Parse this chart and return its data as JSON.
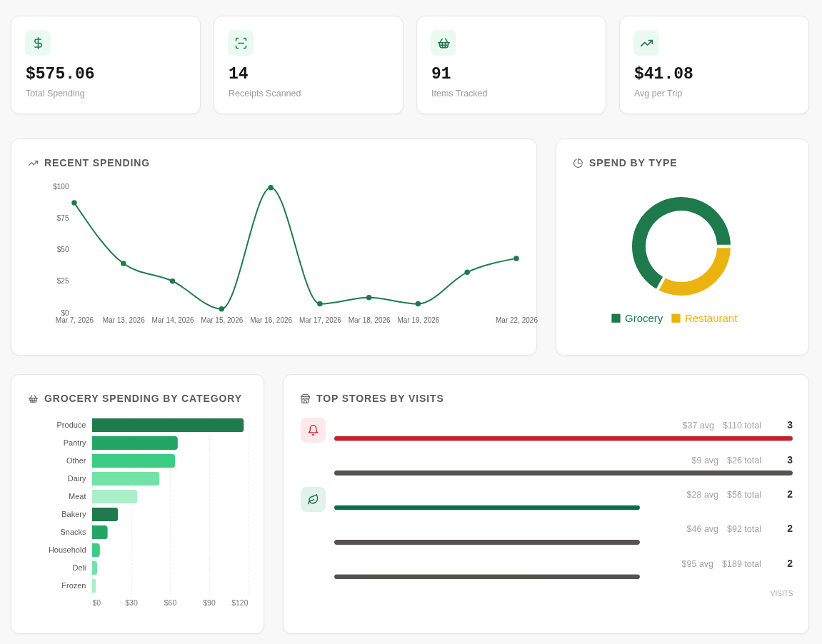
{
  "chart_data": [
    {
      "type": "other",
      "title": "$575.06",
      "subtitle": "Total Spending"
    },
    {
      "type": "other",
      "title": "14",
      "subtitle": "Receipts Scanned"
    },
    {
      "type": "other",
      "title": "91",
      "subtitle": "Items Tracked"
    },
    {
      "type": "other",
      "title": "$41.08",
      "subtitle": "Avg per Trip"
    },
    {
      "type": "line",
      "title": "RECENT SPENDING",
      "categories": [
        "Mar 7, 2026",
        "Mar 13, 2026",
        "Mar 14, 2026",
        "Mar 15, 2026",
        "Mar 16, 2026",
        "Mar 17, 2026",
        "Mar 18, 2026",
        "Mar 19, 2026",
        null,
        "Mar 22, 2026"
      ],
      "series": [
        {
          "color": "#1e7b4b",
          "values": [
            87,
            39,
            25,
            3,
            99,
            7,
            12,
            7,
            32,
            43
          ]
        }
      ],
      "ylim": [
        0,
        100
      ],
      "yticks": [
        {
          "value": 0,
          "label": "$0"
        },
        {
          "value": 25,
          "label": "$25"
        },
        {
          "value": 50,
          "label": "$50"
        },
        {
          "value": 75,
          "label": "$75"
        },
        {
          "value": 100,
          "label": "$100"
        }
      ],
      "marker": "circle"
    },
    {
      "type": "donut",
      "title": "SPEND BY TYPE",
      "categories": [
        "Grocery",
        "Restaurant"
      ],
      "values": [
        67,
        33
      ],
      "colors": [
        "#1e7a4d",
        "#ebb30f"
      ],
      "legend": "bottom"
    },
    {
      "type": "bar",
      "orientation": "horizontal",
      "title": "GROCERY SPENDING BY CATEGORY",
      "categories": [
        "Produce",
        "Pantry",
        "Other",
        "Dairy",
        "Meat",
        "Bakery",
        "Snacks",
        "Household",
        "Deli",
        "Frozen"
      ],
      "values": [
        117,
        66,
        64,
        52,
        35,
        20,
        12,
        6,
        4,
        3
      ],
      "colors": [
        "#1f7a4d",
        "#22a565",
        "#3acd83",
        "#72e3a6",
        "#a9efc8",
        "#1f7a4d",
        "#22a565",
        "#3acd83",
        "#72e3a6",
        "#a9efc8"
      ],
      "xlim": [
        0,
        120
      ],
      "xticks": [
        {
          "value": 0,
          "label": "$0"
        },
        {
          "value": 30,
          "label": "$30"
        },
        {
          "value": 60,
          "label": "$60"
        },
        {
          "value": 90,
          "label": "$90"
        },
        {
          "value": 120,
          "label": "$120"
        }
      ],
      "grid": "x"
    },
    {
      "type": "bar",
      "orientation": "horizontal",
      "title": "TOP STORES BY VISITS",
      "categories": [
        null,
        null,
        null,
        null,
        null
      ],
      "values": [
        3,
        3,
        2,
        2,
        2
      ],
      "colors": [
        "#c62128",
        "#555351",
        "#0b6b47",
        "#555351",
        "#555351"
      ],
      "data_labels": true,
      "xlabel": "VISITS",
      "annotations": [
        "$37 avg",
        "$110 total",
        "$9 avg",
        "$26 total",
        "$28 avg",
        "$56 total",
        "$46 avg",
        "$92 total",
        "$95 avg",
        "$189 total"
      ]
    }
  ]
}
